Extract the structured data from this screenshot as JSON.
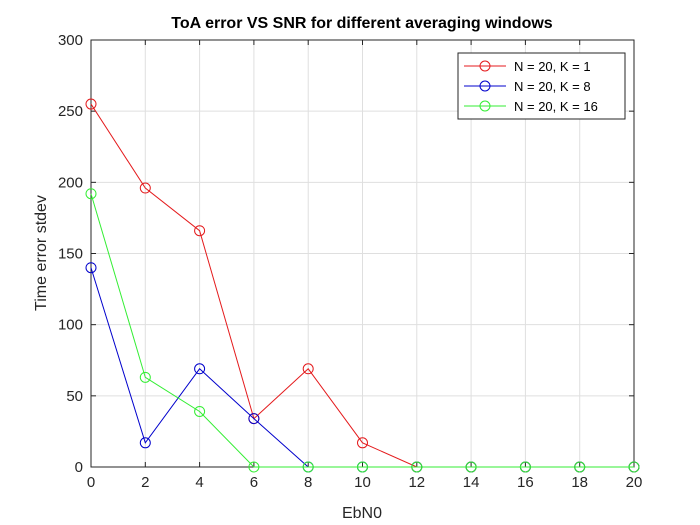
{
  "chart_data": {
    "type": "line",
    "title": "ToA error VS SNR for different averaging windows",
    "xlabel": "EbN0",
    "ylabel": "Time error stdev",
    "xlim": [
      0,
      20
    ],
    "ylim": [
      0,
      300
    ],
    "xticks": [
      0,
      2,
      4,
      6,
      8,
      10,
      12,
      14,
      16,
      18,
      20
    ],
    "yticks": [
      0,
      50,
      100,
      150,
      200,
      250,
      300
    ],
    "grid": true,
    "legend_position": "top-right",
    "x": [
      0,
      2,
      4,
      6,
      8,
      10,
      12,
      14,
      16,
      18,
      20
    ],
    "series": [
      {
        "name": "N = 20, K = 1",
        "color": "#e41a1c",
        "marker": "circle",
        "values": [
          255,
          196,
          166,
          34,
          69,
          17,
          0,
          0,
          0,
          0,
          0
        ]
      },
      {
        "name": "N = 20, K = 8",
        "color": "#0000cc",
        "marker": "circle",
        "values": [
          140,
          17,
          69,
          34,
          0,
          0,
          0,
          0,
          0,
          0,
          0
        ]
      },
      {
        "name": "N = 20, K = 16",
        "color": "#33ee33",
        "marker": "circle",
        "values": [
          192,
          63,
          39,
          0,
          0,
          0,
          0,
          0,
          0,
          0,
          0
        ]
      }
    ]
  }
}
